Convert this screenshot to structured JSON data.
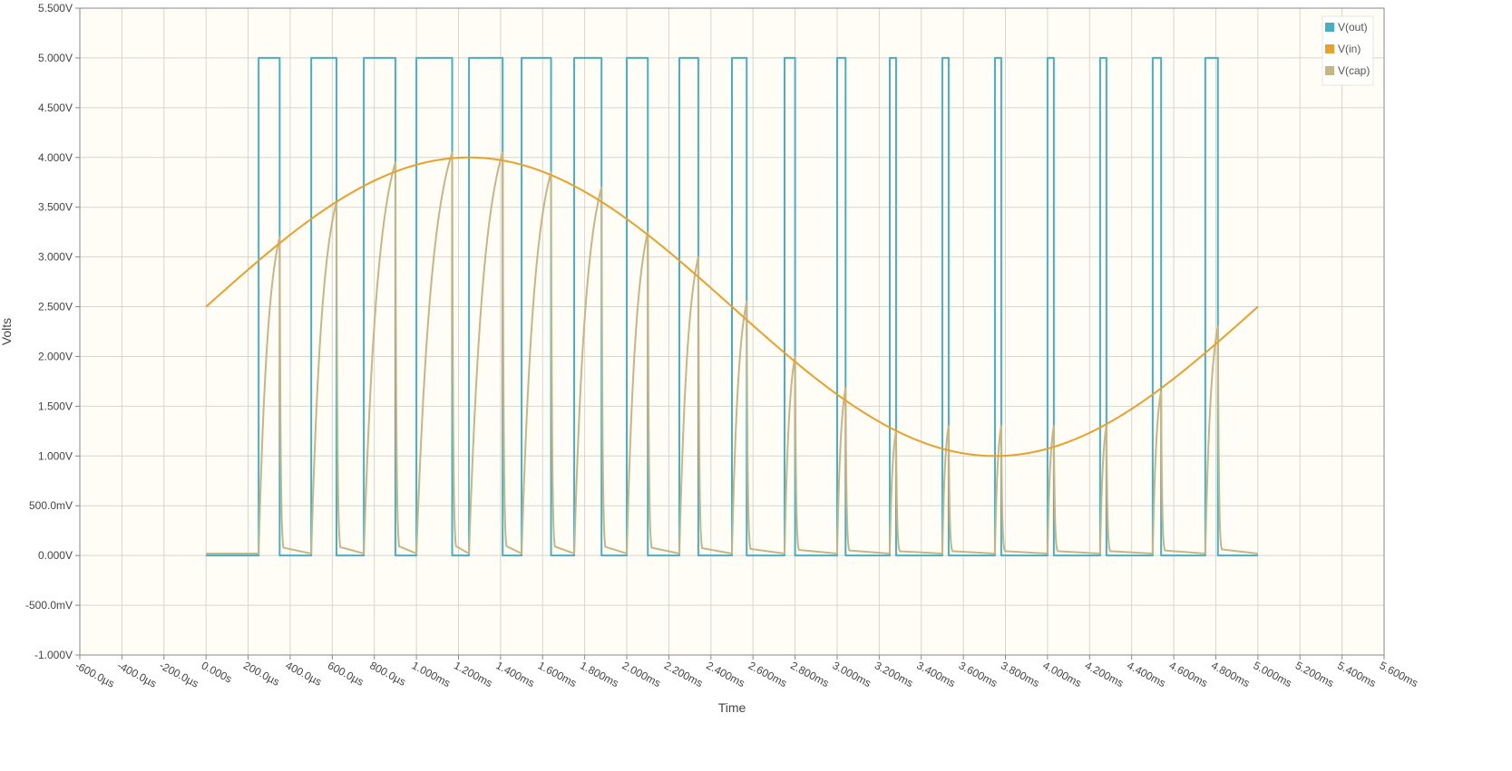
{
  "chart_data": {
    "type": "line",
    "xlabel": "Time",
    "ylabel": "Volts",
    "xlim": [
      -0.0006,
      0.0056
    ],
    "ylim": [
      -1.0,
      5.5
    ],
    "grid": true,
    "legend_position": "top-right",
    "plot_background": "#fffdf6",
    "x_ticks": [
      {
        "value": -0.0006,
        "label": "-600.0µs"
      },
      {
        "value": -0.0004,
        "label": "-400.0µs"
      },
      {
        "value": -0.0002,
        "label": "-200.0µs"
      },
      {
        "value": 0.0,
        "label": "0.000s"
      },
      {
        "value": 0.0002,
        "label": "200.0µs"
      },
      {
        "value": 0.0004,
        "label": "400.0µs"
      },
      {
        "value": 0.0006,
        "label": "600.0µs"
      },
      {
        "value": 0.0008,
        "label": "800.0µs"
      },
      {
        "value": 0.001,
        "label": "1.000ms"
      },
      {
        "value": 0.0012,
        "label": "1.200ms"
      },
      {
        "value": 0.0014,
        "label": "1.400ms"
      },
      {
        "value": 0.0016,
        "label": "1.600ms"
      },
      {
        "value": 0.0018,
        "label": "1.800ms"
      },
      {
        "value": 0.002,
        "label": "2.000ms"
      },
      {
        "value": 0.0022,
        "label": "2.200ms"
      },
      {
        "value": 0.0024,
        "label": "2.400ms"
      },
      {
        "value": 0.0026,
        "label": "2.600ms"
      },
      {
        "value": 0.0028,
        "label": "2.800ms"
      },
      {
        "value": 0.003,
        "label": "3.000ms"
      },
      {
        "value": 0.0032,
        "label": "3.200ms"
      },
      {
        "value": 0.0034,
        "label": "3.400ms"
      },
      {
        "value": 0.0036,
        "label": "3.600ms"
      },
      {
        "value": 0.0038,
        "label": "3.800ms"
      },
      {
        "value": 0.004,
        "label": "4.000ms"
      },
      {
        "value": 0.0042,
        "label": "4.200ms"
      },
      {
        "value": 0.0044,
        "label": "4.400ms"
      },
      {
        "value": 0.0046,
        "label": "4.600ms"
      },
      {
        "value": 0.0048,
        "label": "4.800ms"
      },
      {
        "value": 0.005,
        "label": "5.000ms"
      },
      {
        "value": 0.0052,
        "label": "5.200ms"
      },
      {
        "value": 0.0054,
        "label": "5.400ms"
      },
      {
        "value": 0.0056,
        "label": "5.600ms"
      }
    ],
    "y_ticks": [
      {
        "value": 5.5,
        "label": "5.500V"
      },
      {
        "value": 5.0,
        "label": "5.000V"
      },
      {
        "value": 4.5,
        "label": "4.500V"
      },
      {
        "value": 4.0,
        "label": "4.000V"
      },
      {
        "value": 3.5,
        "label": "3.500V"
      },
      {
        "value": 3.0,
        "label": "3.000V"
      },
      {
        "value": 2.5,
        "label": "2.500V"
      },
      {
        "value": 2.0,
        "label": "2.000V"
      },
      {
        "value": 1.5,
        "label": "1.500V"
      },
      {
        "value": 1.0,
        "label": "1.000V"
      },
      {
        "value": 0.5,
        "label": "500.0mV"
      },
      {
        "value": 0.0,
        "label": "0.000V"
      },
      {
        "value": -0.5,
        "label": "-500.0mV"
      },
      {
        "value": -1.0,
        "label": "-1.000V"
      }
    ],
    "series": [
      {
        "name": "V(out)",
        "color": "#47afc2",
        "kind": "pulse",
        "low": 0.0,
        "high": 5.0,
        "x": [
          0.0,
          0.00025,
          0.00025,
          0.00035,
          0.00035,
          0.0005,
          0.0005,
          0.00062,
          0.00062,
          0.00075,
          0.00075,
          0.0009,
          0.0009,
          0.001,
          0.001,
          0.00117,
          0.00117,
          0.00125,
          0.00125,
          0.00141,
          0.00141,
          0.0015,
          0.0015,
          0.00164,
          0.00164,
          0.00175,
          0.00175,
          0.00188,
          0.00188,
          0.002,
          0.002,
          0.0021,
          0.0021,
          0.00225,
          0.00225,
          0.00234,
          0.00234,
          0.0025,
          0.0025,
          0.00257,
          0.00257,
          0.00275,
          0.00275,
          0.0028,
          0.0028,
          0.003,
          0.003,
          0.00304,
          0.00304,
          0.00325,
          0.00325,
          0.00328,
          0.00328,
          0.0035,
          0.0035,
          0.00353,
          0.00353,
          0.00375,
          0.00375,
          0.00378,
          0.00378,
          0.004,
          0.004,
          0.00403,
          0.00403,
          0.00425,
          0.00425,
          0.00428,
          0.00428,
          0.0045,
          0.0045,
          0.00454,
          0.00454,
          0.00475,
          0.00475,
          0.00481,
          0.00481,
          0.005
        ],
        "y": [
          0.0,
          0.0,
          5.0,
          5.0,
          0.0,
          0.0,
          5.0,
          5.0,
          0.0,
          0.0,
          5.0,
          5.0,
          0.0,
          0.0,
          5.0,
          5.0,
          0.0,
          0.0,
          5.0,
          5.0,
          0.0,
          0.0,
          5.0,
          5.0,
          0.0,
          0.0,
          5.0,
          5.0,
          0.0,
          0.0,
          5.0,
          5.0,
          0.0,
          0.0,
          5.0,
          5.0,
          0.0,
          0.0,
          5.0,
          5.0,
          0.0,
          0.0,
          5.0,
          5.0,
          0.0,
          0.0,
          5.0,
          5.0,
          0.0,
          0.0,
          5.0,
          5.0,
          0.0,
          0.0,
          5.0,
          5.0,
          0.0,
          0.0,
          5.0,
          5.0,
          0.0,
          0.0,
          5.0,
          5.0,
          0.0,
          0.0,
          5.0,
          5.0,
          0.0,
          0.0,
          5.0,
          5.0,
          0.0,
          0.0,
          5.0,
          5.0,
          0.0,
          0.0
        ]
      },
      {
        "name": "V(in)",
        "color": "#e8a12a",
        "kind": "sine",
        "offset": 2.5,
        "amplitude": 1.5,
        "frequency_hz": 200,
        "x_start": 0.0,
        "x_end": 0.005
      },
      {
        "name": "V(cap)",
        "color": "#c8b584",
        "kind": "charge-discharge",
        "baseline": 0.02,
        "cycles": [
          {
            "start": 0.00025,
            "peak_x": 0.00035,
            "peak": 3.2
          },
          {
            "start": 0.0005,
            "peak_x": 0.00062,
            "peak": 3.55
          },
          {
            "start": 0.00075,
            "peak_x": 0.0009,
            "peak": 3.95
          },
          {
            "start": 0.001,
            "peak_x": 0.00117,
            "peak": 4.05
          },
          {
            "start": 0.00125,
            "peak_x": 0.00141,
            "peak": 4.05
          },
          {
            "start": 0.0015,
            "peak_x": 0.00164,
            "peak": 3.85
          },
          {
            "start": 0.00175,
            "peak_x": 0.00188,
            "peak": 3.7
          },
          {
            "start": 0.002,
            "peak_x": 0.0021,
            "peak": 3.25
          },
          {
            "start": 0.00225,
            "peak_x": 0.00234,
            "peak": 3.0
          },
          {
            "start": 0.0025,
            "peak_x": 0.00257,
            "peak": 2.55
          },
          {
            "start": 0.00275,
            "peak_x": 0.0028,
            "peak": 2.0
          },
          {
            "start": 0.003,
            "peak_x": 0.00304,
            "peak": 1.68
          },
          {
            "start": 0.00325,
            "peak_x": 0.00328,
            "peak": 1.25
          },
          {
            "start": 0.0035,
            "peak_x": 0.00353,
            "peak": 1.3
          },
          {
            "start": 0.00375,
            "peak_x": 0.00378,
            "peak": 1.3
          },
          {
            "start": 0.004,
            "peak_x": 0.00403,
            "peak": 1.3
          },
          {
            "start": 0.00425,
            "peak_x": 0.00428,
            "peak": 1.3
          },
          {
            "start": 0.0045,
            "peak_x": 0.00454,
            "peak": 1.65
          },
          {
            "start": 0.00475,
            "peak_x": 0.00481,
            "peak": 2.3
          }
        ],
        "x_end": 0.005
      }
    ]
  }
}
